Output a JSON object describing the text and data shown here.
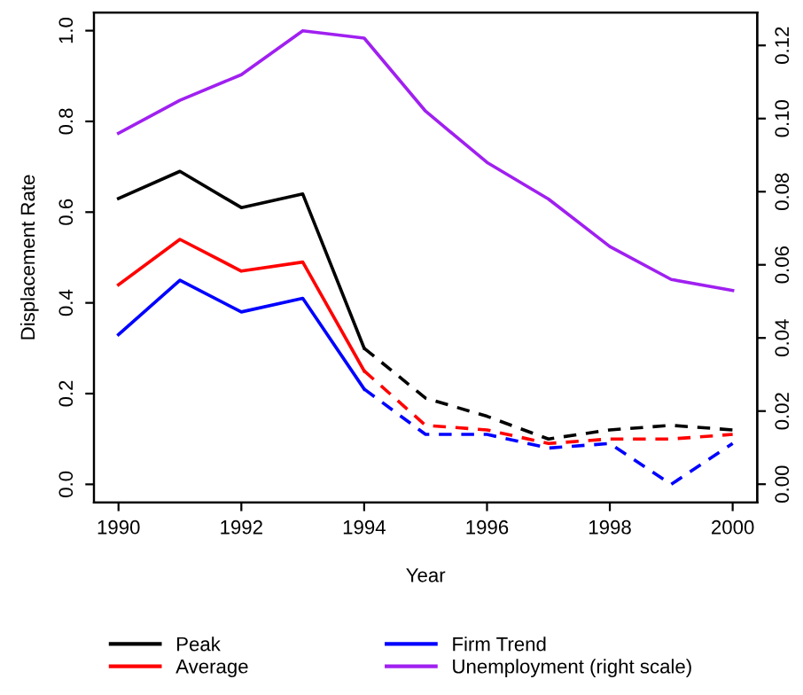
{
  "chart_data": {
    "type": "line",
    "xlabel": "Year",
    "ylabel": "Displacement Rate",
    "xlim": [
      1989.6,
      2000.4
    ],
    "xticks": [
      1990,
      1992,
      1994,
      1996,
      1998,
      2000
    ],
    "ylim": [
      -0.04,
      1.04
    ],
    "yticks": [
      {
        "value": 0,
        "label": "0.0"
      },
      0.2,
      0.4,
      0.6,
      0.8,
      {
        "value": 1,
        "label": "1.0"
      }
    ],
    "y2lim": [
      -0.005,
      0.129
    ],
    "y2ticks": [
      {
        "value": 0,
        "label": "0.00"
      },
      0.02,
      0.04,
      0.06,
      0.08,
      {
        "value": 0.1,
        "label": "0.10"
      },
      0.12
    ],
    "grid": false,
    "legend": "bottom",
    "marker": "none",
    "series": [
      {
        "name": "Peak",
        "color": "#000000",
        "line_style": "solid",
        "x": [
          1990,
          1991,
          1992,
          1993,
          1994
        ],
        "values": [
          0.63,
          0.69,
          0.61,
          0.64,
          0.3
        ]
      },
      {
        "color": "#000000",
        "line_style": "dashed",
        "x": [
          1994,
          1995,
          1996,
          1997,
          1998,
          1999,
          2000
        ],
        "values": [
          0.3,
          0.19,
          0.15,
          0.1,
          0.12,
          0.13,
          0.12
        ]
      },
      {
        "name": "Average",
        "color": "#ff0000",
        "line_style": "solid",
        "x": [
          1990,
          1991,
          1992,
          1993,
          1994
        ],
        "values": [
          0.44,
          0.54,
          0.47,
          0.49,
          0.25
        ]
      },
      {
        "color": "#ff0000",
        "line_style": "dashed",
        "x": [
          1994,
          1995,
          1996,
          1997,
          1998,
          1999,
          2000
        ],
        "values": [
          0.25,
          0.13,
          0.12,
          0.09,
          0.1,
          0.1,
          0.11
        ]
      },
      {
        "name": "Firm Trend",
        "color": "#0000ff",
        "line_style": "solid",
        "x": [
          1990,
          1991,
          1992,
          1993,
          1994
        ],
        "values": [
          0.33,
          0.45,
          0.38,
          0.41,
          0.21
        ]
      },
      {
        "color": "#0000ff",
        "line_style": "dashed",
        "x": [
          1994,
          1995,
          1996,
          1997,
          1998,
          1999,
          2000
        ],
        "values": [
          0.21,
          0.11,
          0.11,
          0.08,
          0.09,
          0.0,
          0.09
        ]
      },
      {
        "name": "Unemployment (right scale)",
        "color": "#a020f0",
        "line_style": "solid",
        "axis": "y2",
        "x": [
          1990,
          1991,
          1992,
          1993,
          1994,
          1995,
          1996,
          1997,
          1998,
          1999,
          2000
        ],
        "values": [
          0.096,
          0.105,
          0.112,
          0.124,
          0.122,
          0.102,
          0.088,
          0.078,
          0.065,
          0.056,
          0.053
        ]
      }
    ]
  }
}
